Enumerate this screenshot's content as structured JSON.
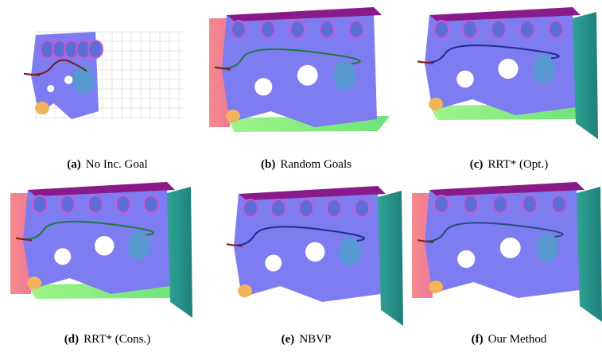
{
  "figure": {
    "panels": [
      {
        "label": "(a)",
        "caption": "No Inc. Goal"
      },
      {
        "label": "(b)",
        "caption": "Random Goals"
      },
      {
        "label": "(c)",
        "caption": "RRT* (Opt.)"
      },
      {
        "label": "(d)",
        "caption": "RRT* (Cons.)"
      },
      {
        "label": "(e)",
        "caption": "NBVP"
      },
      {
        "label": "(f)",
        "caption": "Our Method"
      }
    ]
  }
}
